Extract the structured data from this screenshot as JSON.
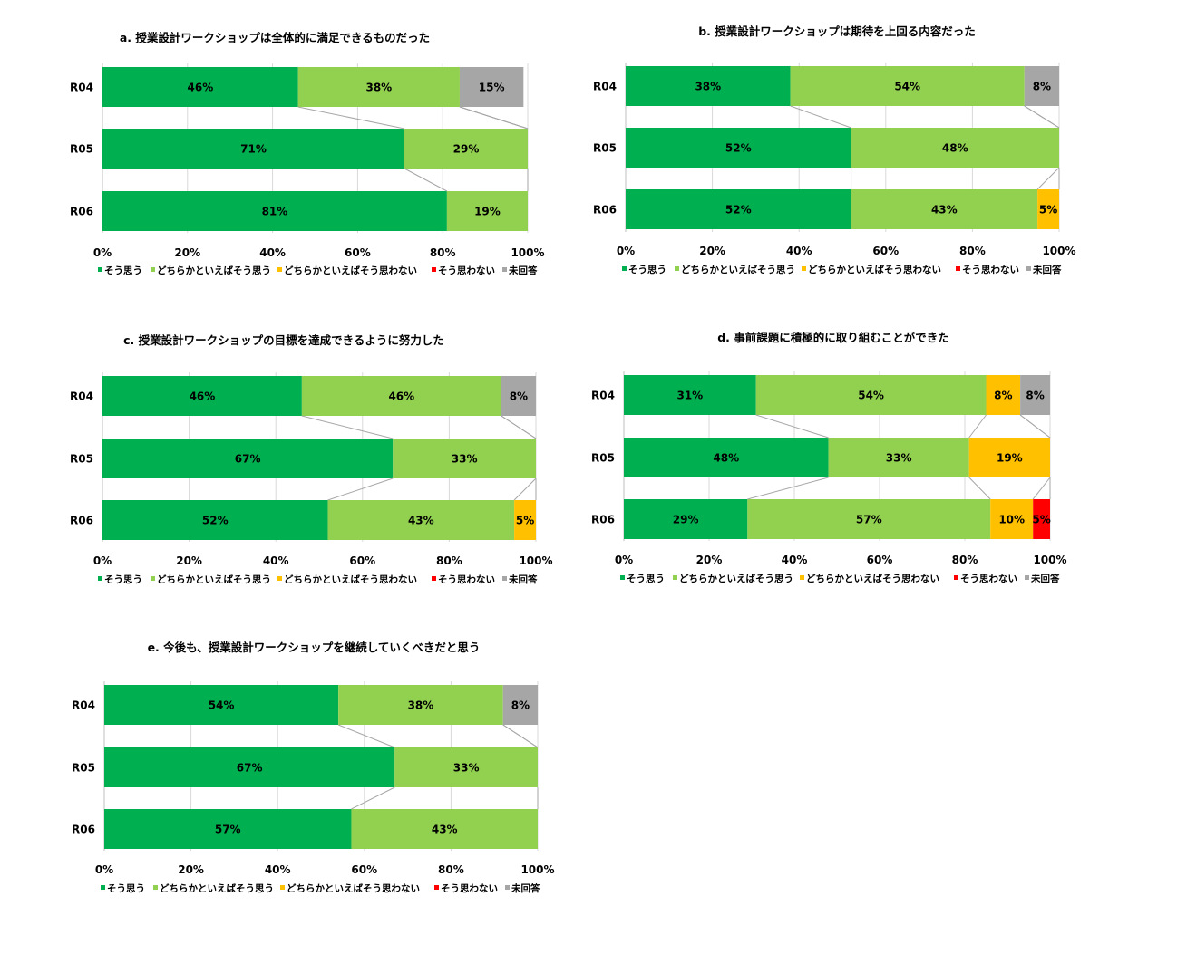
{
  "chart_data": [
    {
      "type": "bar",
      "stacked": true,
      "orientation": "horizontal",
      "title": "a.  授業設計ワークショップは全体的に満足できるものだった",
      "categories": [
        "R04",
        "R05",
        "R06"
      ],
      "series": [
        {
          "name": "そう思う",
          "color": "#00b050",
          "values": [
            46,
            71,
            81
          ]
        },
        {
          "name": "どちらかといえばそう思う",
          "color": "#92d050",
          "values": [
            38,
            29,
            19
          ]
        },
        {
          "name": "どちらかといえばそう思わない",
          "color": "#ffc000",
          "values": [
            0,
            0,
            0
          ]
        },
        {
          "name": "そう思わない",
          "color": "#ff0000",
          "values": [
            0,
            0,
            0
          ]
        },
        {
          "name": "未回答",
          "color": "#a6a6a6",
          "values": [
            15,
            0,
            0
          ]
        }
      ],
      "xlim": [
        0,
        100
      ],
      "xticks": [
        "0%",
        "20%",
        "40%",
        "60%",
        "80%",
        "100%"
      ],
      "legend_position": "bottom"
    },
    {
      "type": "bar",
      "stacked": true,
      "orientation": "horizontal",
      "title": "b.  授業設計ワークショップは期待を上回る内容だった",
      "categories": [
        "R04",
        "R05",
        "R06"
      ],
      "series": [
        {
          "name": "そう思う",
          "color": "#00b050",
          "values": [
            38,
            52,
            52
          ]
        },
        {
          "name": "どちらかといえばそう思う",
          "color": "#92d050",
          "values": [
            54,
            48,
            43
          ]
        },
        {
          "name": "どちらかといえばそう思わない",
          "color": "#ffc000",
          "values": [
            0,
            0,
            5
          ]
        },
        {
          "name": "そう思わない",
          "color": "#ff0000",
          "values": [
            0,
            0,
            0
          ]
        },
        {
          "name": "未回答",
          "color": "#a6a6a6",
          "values": [
            8,
            0,
            0
          ]
        }
      ],
      "xlim": [
        0,
        100
      ],
      "xticks": [
        "0%",
        "20%",
        "40%",
        "60%",
        "80%",
        "100%"
      ],
      "legend_position": "bottom"
    },
    {
      "type": "bar",
      "stacked": true,
      "orientation": "horizontal",
      "title": "c.  授業設計ワークショップの目標を達成できるように努力した",
      "categories": [
        "R04",
        "R05",
        "R06"
      ],
      "series": [
        {
          "name": "そう思う",
          "color": "#00b050",
          "values": [
            46,
            67,
            52
          ]
        },
        {
          "name": "どちらかといえばそう思う",
          "color": "#92d050",
          "values": [
            46,
            33,
            43
          ]
        },
        {
          "name": "どちらかといえばそう思わない",
          "color": "#ffc000",
          "values": [
            0,
            0,
            5
          ]
        },
        {
          "name": "そう思わない",
          "color": "#ff0000",
          "values": [
            0,
            0,
            0
          ]
        },
        {
          "name": "未回答",
          "color": "#a6a6a6",
          "values": [
            8,
            0,
            0
          ]
        }
      ],
      "xlim": [
        0,
        100
      ],
      "xticks": [
        "0%",
        "20%",
        "40%",
        "60%",
        "80%",
        "100%"
      ],
      "legend_position": "bottom"
    },
    {
      "type": "bar",
      "stacked": true,
      "orientation": "horizontal",
      "title": "d.  事前課題に積極的に取り組むことができた",
      "categories": [
        "R04",
        "R05",
        "R06"
      ],
      "series": [
        {
          "name": "そう思う",
          "color": "#00b050",
          "values": [
            31,
            48,
            29
          ]
        },
        {
          "name": "どちらかといえばそう思う",
          "color": "#92d050",
          "values": [
            54,
            33,
            57
          ]
        },
        {
          "name": "どちらかといえばそう思わない",
          "color": "#ffc000",
          "values": [
            8,
            19,
            10
          ]
        },
        {
          "name": "そう思わない",
          "color": "#ff0000",
          "values": [
            0,
            0,
            5
          ]
        },
        {
          "name": "未回答",
          "color": "#a6a6a6",
          "values": [
            8,
            0,
            0
          ]
        }
      ],
      "xlim": [
        0,
        100
      ],
      "xticks": [
        "0%",
        "20%",
        "40%",
        "60%",
        "80%",
        "100%"
      ],
      "legend_position": "bottom"
    },
    {
      "type": "bar",
      "stacked": true,
      "orientation": "horizontal",
      "title": "e.  今後も、授業設計ワークショップを継続していくべきだと思う",
      "categories": [
        "R04",
        "R05",
        "R06"
      ],
      "series": [
        {
          "name": "そう思う",
          "color": "#00b050",
          "values": [
            54,
            67,
            57
          ]
        },
        {
          "name": "どちらかといえばそう思う",
          "color": "#92d050",
          "values": [
            38,
            33,
            43
          ]
        },
        {
          "name": "どちらかといえばそう思わない",
          "color": "#ffc000",
          "values": [
            0,
            0,
            0
          ]
        },
        {
          "name": "そう思わない",
          "color": "#ff0000",
          "values": [
            0,
            0,
            0
          ]
        },
        {
          "name": "未回答",
          "color": "#a6a6a6",
          "values": [
            8,
            0,
            0
          ]
        }
      ],
      "xlim": [
        0,
        100
      ],
      "xticks": [
        "0%",
        "20%",
        "40%",
        "60%",
        "80%",
        "100%"
      ],
      "legend_position": "bottom"
    }
  ]
}
